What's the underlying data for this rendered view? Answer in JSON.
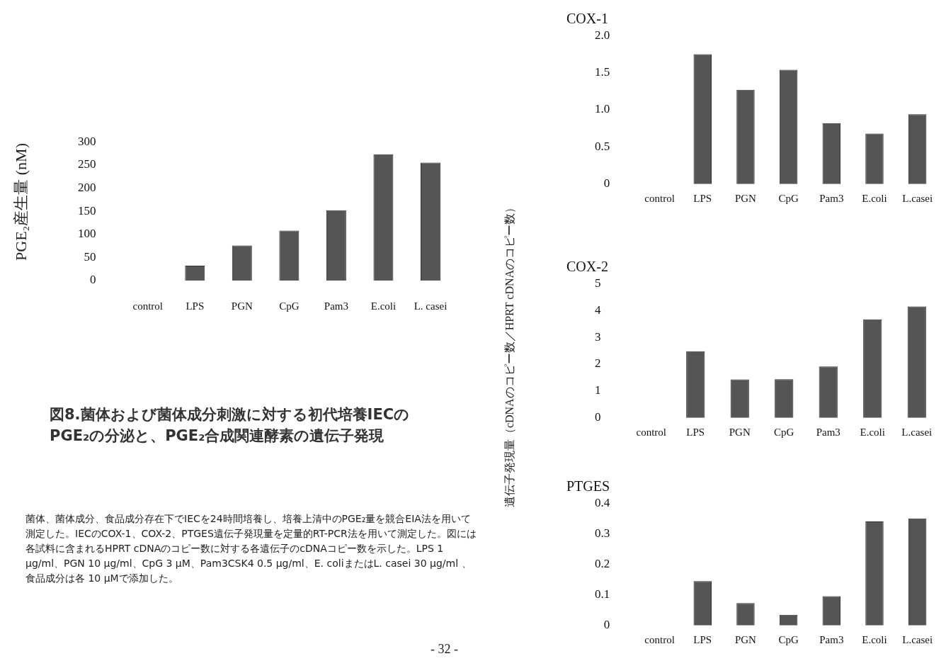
{
  "chart_data": [
    {
      "type": "bar",
      "ylabel": "PGE₂産生量 (nM)",
      "categories": [
        "control",
        "LPS",
        "PGN",
        "CpG",
        "Pam3",
        "E.coli",
        "L. casei"
      ],
      "values": [
        0,
        32,
        76,
        108,
        152,
        273,
        255
      ],
      "color": "#555555",
      "ylim": [
        0,
        300
      ],
      "yticks": [
        0,
        50,
        100,
        150,
        200,
        250,
        300
      ],
      "grid": false,
      "annotations": [
        "図8.菌体および菌体成分刺激に対する初代培養IECのPGE₂の分泌と、PGE₂合成関連酵素の遺伝子発現",
        "菌体、菌体成分、食品成分存在下でIECを24時間培養し、培養上清中のPGE₂量を競合EIA法を用いて測定した。IECのCOX-1、COX-2、PTGES遺伝子発現量を定量的RT-PCR法を用いて測定した。図には各試料に含まれるHPRT cDNAのコピー数に対する各遺伝子のcDNAコピー数を示した。LPS 1 μg/ml、PGN 10 μg/ml、CpG 3 μM、Pam3CSK4 0.5 μg/ml、E. coliまたはL. casei 30 μg/ml 、食品成分は各 10 μMで添加した。",
        "- 32 -"
      ]
    },
    {
      "type": "bar",
      "title": "COX-1",
      "categories": [
        "control",
        "LPS",
        "PGN",
        "CpG",
        "Pam3",
        "E.coli",
        "L.casei"
      ],
      "values": [
        0,
        1.75,
        1.27,
        1.54,
        0.82,
        0.68,
        0.94
      ],
      "color": "#555555",
      "ylim": [
        0,
        2
      ],
      "yticks": [
        {
          "value": 0,
          "label": "0"
        },
        {
          "value": 0.5,
          "label": "0.5"
        },
        {
          "value": 1,
          "label": "1.0"
        },
        {
          "value": 1.5,
          "label": "1.5"
        },
        {
          "value": 2,
          "label": "2.0"
        }
      ],
      "grid": false
    },
    {
      "type": "bar",
      "title": "COX-2",
      "ylabel": "遺伝子発現量（cDNAのコピー数／HPRT cDNAのコピー数）",
      "categories": [
        "control",
        "LPS",
        "PGN",
        "CpG",
        "Pam3",
        "E.coli",
        "L.casei"
      ],
      "values": [
        0,
        2.48,
        1.43,
        1.44,
        1.91,
        3.67,
        4.15
      ],
      "color": "#555555",
      "ylim": [
        0,
        5
      ],
      "yticks": [
        0,
        1,
        2,
        3,
        4,
        5
      ],
      "grid": false
    },
    {
      "type": "bar",
      "title": "PTGES",
      "categories": [
        "control",
        "LPS",
        "PGN",
        "CpG",
        "Pam3",
        "E.coli",
        "L.casei"
      ],
      "values": [
        0,
        0.145,
        0.073,
        0.035,
        0.096,
        0.34,
        0.35
      ],
      "color": "#555555",
      "ylim": [
        0,
        0.4
      ],
      "yticks": [
        0,
        0.1,
        0.2,
        0.3,
        0.4
      ],
      "grid": false
    }
  ]
}
